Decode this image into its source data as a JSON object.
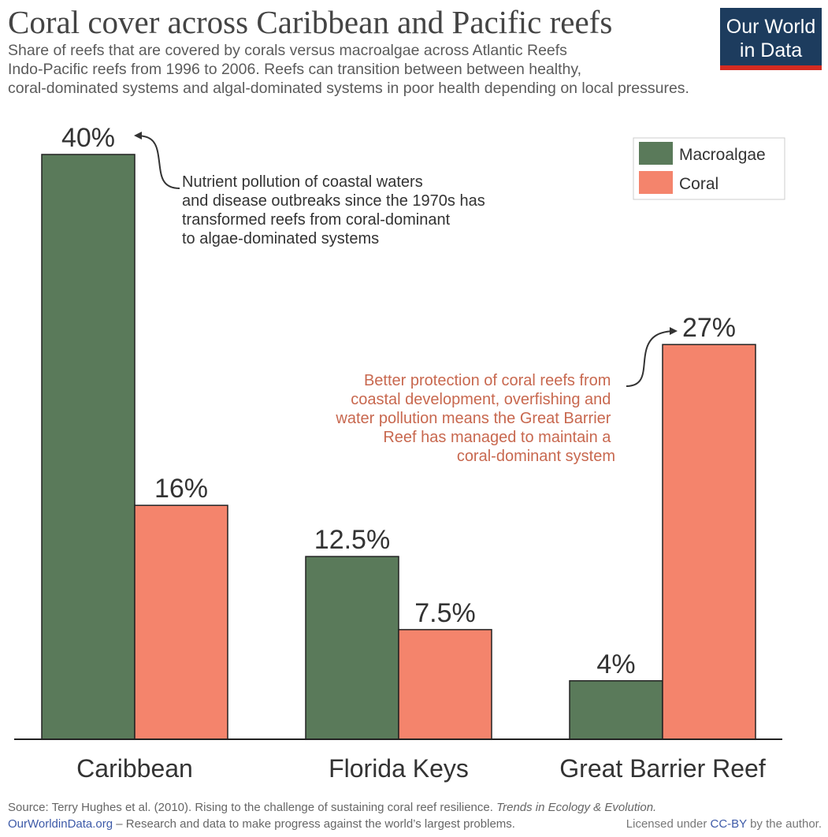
{
  "header": {
    "title": "Coral cover across Caribbean and Pacific reefs",
    "subtitle_lines": [
      "Share of reefs that are covered by corals versus macroalgae across Atlantic Reefs",
      "Indo-Pacific reefs from 1996 to 2006. Reefs can transition between between healthy,",
      "coral-dominated systems and algal-dominated systems in poor health depending on local pressures."
    ]
  },
  "logo": {
    "line1": "Our World",
    "line2": "in Data"
  },
  "chart_data": {
    "type": "bar",
    "title": "Coral cover across Caribbean and Pacific reefs",
    "categories": [
      "Caribbean",
      "Florida Keys",
      "Great Barrier Reef"
    ],
    "series": [
      {
        "name": "Macroalgae",
        "color": "#5a7a5a",
        "values": [
          40,
          12.5,
          4
        ],
        "labels": [
          "40%",
          "12.5%",
          "4%"
        ]
      },
      {
        "name": "Coral",
        "color": "#f4846c",
        "values": [
          16,
          7.5,
          27
        ],
        "labels": [
          "16%",
          "7.5%",
          "27%"
        ]
      }
    ],
    "ylim": [
      0,
      40
    ],
    "xlabel": "",
    "ylabel": "",
    "legend": "top-right",
    "annotations": [
      {
        "target": "Caribbean Macroalgae",
        "color": "#333333",
        "lines": [
          "Nutrient pollution of coastal waters",
          "and disease outbreaks since the 1970s has",
          "transformed reefs from coral-dominant",
          "to algae-dominated systems"
        ]
      },
      {
        "target": "Great Barrier Reef Coral",
        "color": "#c8684f",
        "lines": [
          "Better protection of coral reefs from",
          "coastal development, overfishing and",
          "water pollution means the Great Barrier",
          "Reef has managed to maintain a",
          "coral-dominant system"
        ]
      }
    ]
  },
  "footer": {
    "source_prefix": "Source: Terry Hughes et al. (2010). Rising to the challenge of sustaining coral reef resilience.",
    "source_journal": "Trends in Ecology & Evolution.",
    "site": "OurWorldinData.org",
    "tagline": "– Research and data to make progress against the world’s largest problems.",
    "license_prefix": "Licensed under",
    "license_link": "CC-BY",
    "license_suffix": "by the author."
  }
}
